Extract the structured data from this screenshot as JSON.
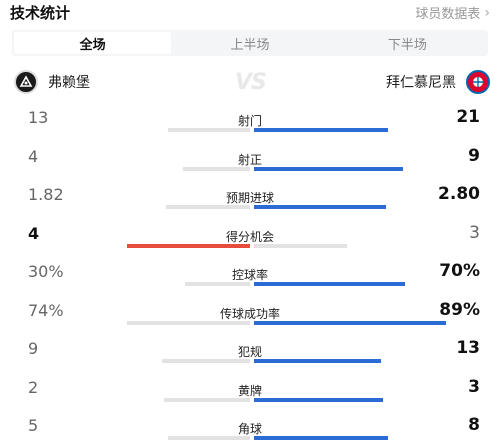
{
  "header": {
    "title": "技术统计",
    "link_label": "球员数据表"
  },
  "tabs": [
    {
      "label": "全场",
      "active": true
    },
    {
      "label": "上半场",
      "active": false
    },
    {
      "label": "下半场",
      "active": false
    }
  ],
  "teams": {
    "home": {
      "name": "弗赖堡",
      "logo": "freiburg-logo"
    },
    "away": {
      "name": "拜仁慕尼黑",
      "logo": "bayern-logo"
    },
    "vs": "VS"
  },
  "colors": {
    "home_lead": "#e74c3c",
    "away_lead": "#2b6bd6",
    "neutral": "#e2e2e4"
  },
  "stats": [
    {
      "label": "射门",
      "home": "13",
      "away": "21",
      "home_share": 0.38,
      "away_share": 0.62,
      "leader": "away"
    },
    {
      "label": "射正",
      "home": "4",
      "away": "9",
      "home_share": 0.31,
      "away_share": 0.69,
      "leader": "away"
    },
    {
      "label": "预期进球",
      "home": "1.82",
      "away": "2.80",
      "home_share": 0.39,
      "away_share": 0.61,
      "leader": "away"
    },
    {
      "label": "得分机会",
      "home": "4",
      "away": "3",
      "home_share": 0.57,
      "away_share": 0.43,
      "leader": "home"
    },
    {
      "label": "控球率",
      "home": "30%",
      "away": "70%",
      "home_share": 0.3,
      "away_share": 0.7,
      "leader": "away"
    },
    {
      "label": "传球成功率",
      "home": "74%",
      "away": "89%",
      "home_share": 0.74,
      "away_share": 0.89,
      "leader": "away"
    },
    {
      "label": "犯规",
      "home": "9",
      "away": "13",
      "home_share": 0.41,
      "away_share": 0.59,
      "leader": "away"
    },
    {
      "label": "黄牌",
      "home": "2",
      "away": "3",
      "home_share": 0.4,
      "away_share": 0.6,
      "leader": "away"
    },
    {
      "label": "角球",
      "home": "5",
      "away": "8",
      "home_share": 0.38,
      "away_share": 0.62,
      "leader": "away"
    }
  ]
}
